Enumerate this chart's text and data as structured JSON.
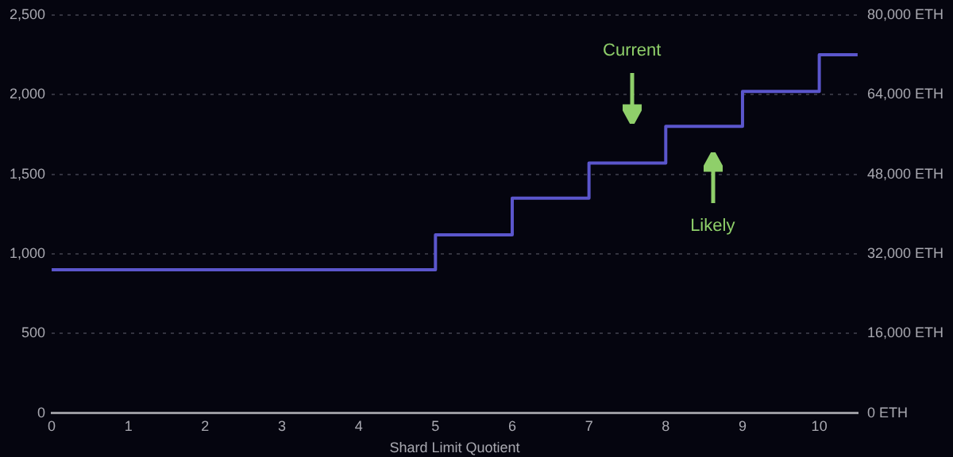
{
  "chart_data": {
    "type": "step",
    "xlabel": "Shard Limit Quotient",
    "x": [
      0,
      5,
      6,
      7,
      8,
      9,
      10,
      10.5
    ],
    "series": [
      {
        "color": "#5b56cc",
        "values": [
          900,
          1120,
          1350,
          1570,
          1800,
          2020,
          2250,
          2250
        ]
      }
    ],
    "xlim": [
      0,
      10.5
    ],
    "xticks": [
      0,
      1,
      2,
      3,
      4,
      5,
      6,
      7,
      8,
      9,
      10
    ],
    "ylim": [
      0,
      2500
    ],
    "yticks": [
      0,
      {
        "value": 500,
        "label": "500"
      },
      {
        "value": 1000,
        "label": "1,000"
      },
      {
        "value": 1500,
        "label": "1,500"
      },
      {
        "value": 2000,
        "label": "2,000"
      },
      {
        "value": 2500,
        "label": "2,500"
      }
    ],
    "y2lim": [
      0,
      80000
    ],
    "y2ticks": [
      {
        "value": 0,
        "label": "0 ETH"
      },
      {
        "value": 16000,
        "label": "16,000 ETH"
      },
      {
        "value": 32000,
        "label": "32,000 ETH"
      },
      {
        "value": 48000,
        "label": "48,000 ETH"
      },
      {
        "value": 64000,
        "label": "64,000 ETH"
      },
      {
        "value": 80000,
        "label": "80,000 ETH"
      }
    ],
    "grid": "y",
    "legend": false,
    "marker": "none",
    "line_style": "solid",
    "annotations": [
      "Current",
      "Likely"
    ]
  }
}
